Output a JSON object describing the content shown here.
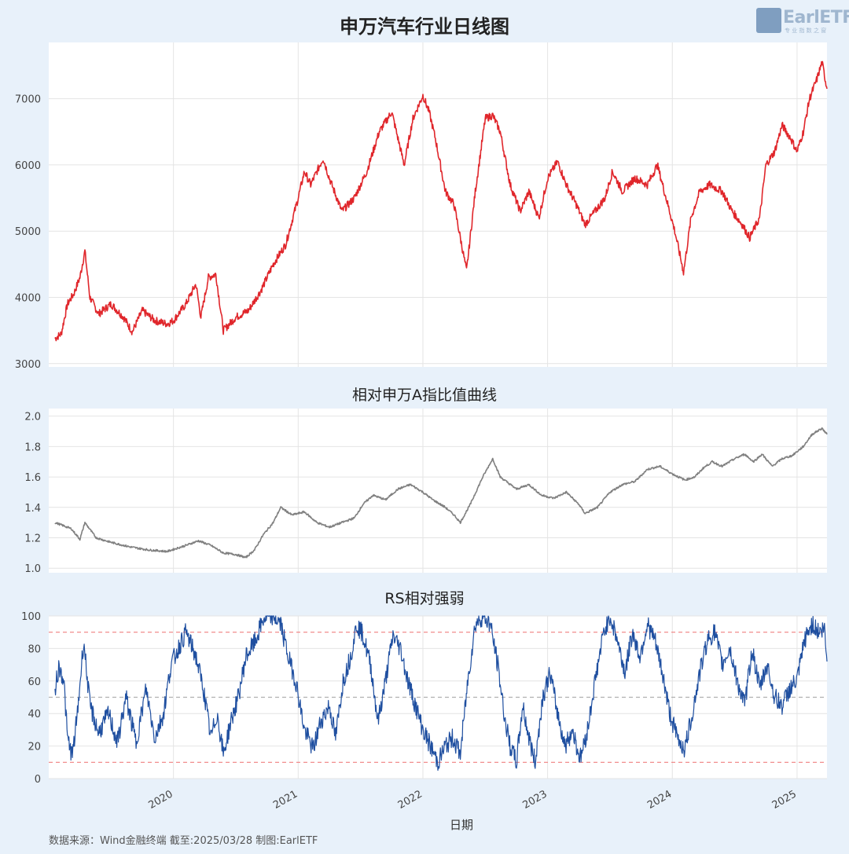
{
  "titles": {
    "main": "申万汽车行业日线图",
    "panel2": "相对申万A指比值曲线",
    "panel3": "RS相对强弱"
  },
  "logo": {
    "text": "EarlETF",
    "small": "专 业 指 数 之 窗"
  },
  "footer": "数据来源：Wind金融终端 截至:2025/03/28 制图:EarlETF",
  "colors": {
    "price": "#e0262b",
    "ratio": "#808080",
    "rs": "#1f4fa0",
    "band": "#f08080",
    "mid": "#b0b0b0",
    "background": "#e8f1fa",
    "panel": "#ffffff"
  },
  "chart_data": [
    {
      "type": "line",
      "title": "申万汽车行业日线图",
      "ylim": [
        2950,
        7850
      ],
      "yticks": [
        3000,
        4000,
        5000,
        6000,
        7000
      ],
      "grid": true,
      "series": [
        {
          "values": [
            [
              2019.05,
              3380
            ],
            [
              2019.1,
              3450
            ],
            [
              2019.15,
              3900
            ],
            [
              2019.2,
              4050
            ],
            [
              2019.25,
              4300
            ],
            [
              2019.29,
              4700
            ],
            [
              2019.33,
              4000
            ],
            [
              2019.4,
              3750
            ],
            [
              2019.5,
              3900
            ],
            [
              2019.6,
              3700
            ],
            [
              2019.67,
              3480
            ],
            [
              2019.75,
              3800
            ],
            [
              2019.85,
              3650
            ],
            [
              2019.95,
              3600
            ],
            [
              2020.0,
              3650
            ],
            [
              2020.1,
              3900
            ],
            [
              2020.18,
              4200
            ],
            [
              2020.22,
              3700
            ],
            [
              2020.28,
              4300
            ],
            [
              2020.34,
              4350
            ],
            [
              2020.4,
              3500
            ],
            [
              2020.5,
              3700
            ],
            [
              2020.6,
              3800
            ],
            [
              2020.7,
              4100
            ],
            [
              2020.8,
              4500
            ],
            [
              2020.9,
              4800
            ],
            [
              2021.0,
              5500
            ],
            [
              2021.05,
              5900
            ],
            [
              2021.1,
              5700
            ],
            [
              2021.2,
              6100
            ],
            [
              2021.25,
              5800
            ],
            [
              2021.35,
              5300
            ],
            [
              2021.45,
              5500
            ],
            [
              2021.55,
              5900
            ],
            [
              2021.65,
              6500
            ],
            [
              2021.75,
              6800
            ],
            [
              2021.85,
              6000
            ],
            [
              2021.92,
              6700
            ],
            [
              2022.0,
              7050
            ],
            [
              2022.05,
              6800
            ],
            [
              2022.1,
              6400
            ],
            [
              2022.18,
              5600
            ],
            [
              2022.25,
              5400
            ],
            [
              2022.3,
              4900
            ],
            [
              2022.35,
              4400
            ],
            [
              2022.42,
              5600
            ],
            [
              2022.5,
              6700
            ],
            [
              2022.56,
              6750
            ],
            [
              2022.62,
              6500
            ],
            [
              2022.7,
              5700
            ],
            [
              2022.78,
              5300
            ],
            [
              2022.85,
              5600
            ],
            [
              2022.93,
              5200
            ],
            [
              2023.0,
              5800
            ],
            [
              2023.08,
              6050
            ],
            [
              2023.15,
              5700
            ],
            [
              2023.23,
              5400
            ],
            [
              2023.3,
              5100
            ],
            [
              2023.38,
              5300
            ],
            [
              2023.46,
              5500
            ],
            [
              2023.52,
              5900
            ],
            [
              2023.6,
              5600
            ],
            [
              2023.7,
              5800
            ],
            [
              2023.8,
              5700
            ],
            [
              2023.88,
              6000
            ],
            [
              2023.95,
              5500
            ],
            [
              2024.02,
              5000
            ],
            [
              2024.09,
              4380
            ],
            [
              2024.15,
              5200
            ],
            [
              2024.22,
              5600
            ],
            [
              2024.3,
              5700
            ],
            [
              2024.4,
              5600
            ],
            [
              2024.48,
              5300
            ],
            [
              2024.56,
              5100
            ],
            [
              2024.62,
              4900
            ],
            [
              2024.7,
              5200
            ],
            [
              2024.75,
              6000
            ],
            [
              2024.82,
              6200
            ],
            [
              2024.88,
              6600
            ],
            [
              2024.95,
              6400
            ],
            [
              2025.0,
              6200
            ],
            [
              2025.05,
              6500
            ],
            [
              2025.1,
              7000
            ],
            [
              2025.16,
              7300
            ],
            [
              2025.2,
              7550
            ],
            [
              2025.24,
              7150
            ]
          ]
        }
      ]
    },
    {
      "type": "line",
      "title": "相对申万A指比值曲线",
      "ylim": [
        0.97,
        2.05
      ],
      "yticks": [
        1.0,
        1.2,
        1.4,
        1.6,
        1.8,
        2.0
      ],
      "grid": true,
      "series": [
        {
          "values": [
            [
              2019.05,
              1.3
            ],
            [
              2019.18,
              1.26
            ],
            [
              2019.25,
              1.19
            ],
            [
              2019.29,
              1.3
            ],
            [
              2019.38,
              1.2
            ],
            [
              2019.5,
              1.17
            ],
            [
              2019.65,
              1.14
            ],
            [
              2019.8,
              1.12
            ],
            [
              2019.95,
              1.11
            ],
            [
              2020.1,
              1.15
            ],
            [
              2020.2,
              1.18
            ],
            [
              2020.3,
              1.15
            ],
            [
              2020.4,
              1.1
            ],
            [
              2020.5,
              1.09
            ],
            [
              2020.58,
              1.07
            ],
            [
              2020.65,
              1.12
            ],
            [
              2020.72,
              1.22
            ],
            [
              2020.8,
              1.3
            ],
            [
              2020.86,
              1.4
            ],
            [
              2020.95,
              1.35
            ],
            [
              2021.05,
              1.37
            ],
            [
              2021.15,
              1.3
            ],
            [
              2021.25,
              1.27
            ],
            [
              2021.35,
              1.3
            ],
            [
              2021.45,
              1.33
            ],
            [
              2021.52,
              1.42
            ],
            [
              2021.6,
              1.48
            ],
            [
              2021.7,
              1.45
            ],
            [
              2021.8,
              1.52
            ],
            [
              2021.9,
              1.55
            ],
            [
              2022.0,
              1.5
            ],
            [
              2022.08,
              1.45
            ],
            [
              2022.18,
              1.4
            ],
            [
              2022.25,
              1.35
            ],
            [
              2022.3,
              1.3
            ],
            [
              2022.38,
              1.42
            ],
            [
              2022.48,
              1.6
            ],
            [
              2022.56,
              1.72
            ],
            [
              2022.62,
              1.6
            ],
            [
              2022.75,
              1.52
            ],
            [
              2022.85,
              1.55
            ],
            [
              2022.95,
              1.48
            ],
            [
              2023.05,
              1.46
            ],
            [
              2023.15,
              1.5
            ],
            [
              2023.25,
              1.42
            ],
            [
              2023.3,
              1.36
            ],
            [
              2023.4,
              1.4
            ],
            [
              2023.5,
              1.5
            ],
            [
              2023.6,
              1.55
            ],
            [
              2023.7,
              1.57
            ],
            [
              2023.8,
              1.65
            ],
            [
              2023.9,
              1.67
            ],
            [
              2024.0,
              1.62
            ],
            [
              2024.1,
              1.58
            ],
            [
              2024.18,
              1.6
            ],
            [
              2024.25,
              1.66
            ],
            [
              2024.32,
              1.7
            ],
            [
              2024.4,
              1.67
            ],
            [
              2024.5,
              1.72
            ],
            [
              2024.58,
              1.75
            ],
            [
              2024.65,
              1.7
            ],
            [
              2024.72,
              1.75
            ],
            [
              2024.8,
              1.67
            ],
            [
              2024.88,
              1.72
            ],
            [
              2024.96,
              1.74
            ],
            [
              2025.05,
              1.8
            ],
            [
              2025.12,
              1.88
            ],
            [
              2025.2,
              1.92
            ],
            [
              2025.24,
              1.88
            ]
          ]
        }
      ]
    },
    {
      "type": "line",
      "title": "RS相对强弱",
      "ylim": [
        0,
        100
      ],
      "yticks": [
        0,
        20,
        40,
        60,
        80,
        100
      ],
      "reference_lines": [
        10,
        50,
        90
      ],
      "grid": true,
      "xticks": [
        "2020",
        "2021",
        "2022",
        "2023",
        "2024",
        "2025"
      ],
      "xlabel": "日期",
      "series": [
        {
          "values": [
            [
              2019.05,
              55
            ],
            [
              2019.08,
              68
            ],
            [
              2019.12,
              62
            ],
            [
              2019.15,
              25
            ],
            [
              2019.19,
              14
            ],
            [
              2019.23,
              40
            ],
            [
              2019.28,
              85
            ],
            [
              2019.33,
              45
            ],
            [
              2019.4,
              28
            ],
            [
              2019.48,
              40
            ],
            [
              2019.55,
              22
            ],
            [
              2019.62,
              50
            ],
            [
              2019.7,
              22
            ],
            [
              2019.78,
              55
            ],
            [
              2019.85,
              25
            ],
            [
              2019.92,
              40
            ],
            [
              2019.98,
              70
            ],
            [
              2020.05,
              82
            ],
            [
              2020.1,
              90
            ],
            [
              2020.18,
              75
            ],
            [
              2020.24,
              55
            ],
            [
              2020.3,
              25
            ],
            [
              2020.35,
              40
            ],
            [
              2020.4,
              15
            ],
            [
              2020.46,
              35
            ],
            [
              2020.52,
              50
            ],
            [
              2020.58,
              75
            ],
            [
              2020.66,
              85
            ],
            [
              2020.72,
              98
            ],
            [
              2020.8,
              100
            ],
            [
              2020.86,
              95
            ],
            [
              2020.92,
              75
            ],
            [
              2020.98,
              60
            ],
            [
              2021.05,
              30
            ],
            [
              2021.12,
              18
            ],
            [
              2021.18,
              35
            ],
            [
              2021.25,
              45
            ],
            [
              2021.3,
              25
            ],
            [
              2021.36,
              60
            ],
            [
              2021.42,
              75
            ],
            [
              2021.47,
              95
            ],
            [
              2021.52,
              88
            ],
            [
              2021.58,
              70
            ],
            [
              2021.64,
              35
            ],
            [
              2021.7,
              60
            ],
            [
              2021.76,
              88
            ],
            [
              2021.82,
              80
            ],
            [
              2021.88,
              60
            ],
            [
              2021.94,
              45
            ],
            [
              2022.0,
              30
            ],
            [
              2022.06,
              20
            ],
            [
              2022.12,
              10
            ],
            [
              2022.18,
              20
            ],
            [
              2022.24,
              25
            ],
            [
              2022.3,
              15
            ],
            [
              2022.36,
              60
            ],
            [
              2022.42,
              95
            ],
            [
              2022.48,
              100
            ],
            [
              2022.54,
              95
            ],
            [
              2022.6,
              70
            ],
            [
              2022.66,
              35
            ],
            [
              2022.7,
              20
            ],
            [
              2022.75,
              10
            ],
            [
              2022.8,
              45
            ],
            [
              2022.85,
              25
            ],
            [
              2022.9,
              10
            ],
            [
              2022.96,
              50
            ],
            [
              2023.02,
              65
            ],
            [
              2023.08,
              40
            ],
            [
              2023.14,
              20
            ],
            [
              2023.2,
              30
            ],
            [
              2023.26,
              12
            ],
            [
              2023.32,
              30
            ],
            [
              2023.38,
              60
            ],
            [
              2023.45,
              90
            ],
            [
              2023.5,
              100
            ],
            [
              2023.56,
              85
            ],
            [
              2023.62,
              65
            ],
            [
              2023.68,
              90
            ],
            [
              2023.74,
              75
            ],
            [
              2023.8,
              95
            ],
            [
              2023.86,
              85
            ],
            [
              2023.92,
              65
            ],
            [
              2023.98,
              40
            ],
            [
              2024.04,
              25
            ],
            [
              2024.1,
              18
            ],
            [
              2024.16,
              40
            ],
            [
              2024.22,
              65
            ],
            [
              2024.28,
              85
            ],
            [
              2024.34,
              90
            ],
            [
              2024.4,
              70
            ],
            [
              2024.46,
              80
            ],
            [
              2024.52,
              60
            ],
            [
              2024.58,
              45
            ],
            [
              2024.64,
              80
            ],
            [
              2024.7,
              55
            ],
            [
              2024.76,
              70
            ],
            [
              2024.82,
              50
            ],
            [
              2024.88,
              45
            ],
            [
              2024.94,
              55
            ],
            [
              2025.0,
              60
            ],
            [
              2025.06,
              85
            ],
            [
              2025.12,
              95
            ],
            [
              2025.18,
              90
            ],
            [
              2025.22,
              92
            ],
            [
              2025.24,
              72
            ]
          ]
        }
      ]
    }
  ]
}
